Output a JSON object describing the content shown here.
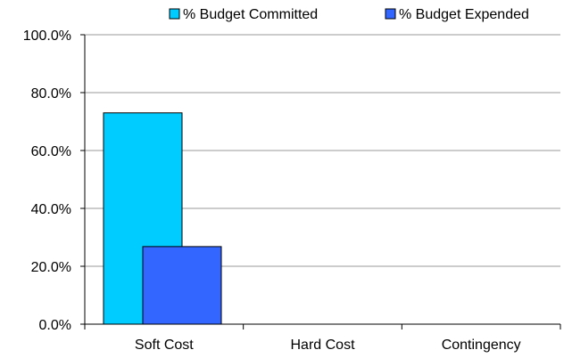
{
  "chart_data": {
    "type": "bar",
    "title": "",
    "xlabel": "",
    "ylabel": "",
    "categories": [
      "Soft Cost",
      "Hard Cost",
      "Contingency"
    ],
    "series": [
      {
        "name": "% Budget Committed",
        "values": [
          73.0,
          0,
          0
        ],
        "color": "#00CCFF"
      },
      {
        "name": "% Budget Expended",
        "values": [
          26.8,
          0,
          0
        ],
        "color": "#3366FF"
      }
    ],
    "ylim": [
      0,
      100
    ],
    "y_ticks": [
      0,
      20,
      40,
      60,
      80,
      100
    ],
    "y_tick_labels": [
      "0.0%",
      "20.0%",
      "40.0%",
      "60.0%",
      "80.0%",
      "100.0%"
    ],
    "grid": true,
    "legend_position": "top-right"
  }
}
